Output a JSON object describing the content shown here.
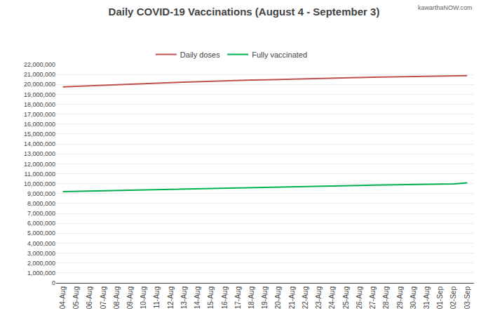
{
  "chart_data": {
    "type": "line",
    "title": "Daily COVID-19 Vaccinations (August 4 - September 3)",
    "annotations": [
      "kawarthaNOW.com"
    ],
    "categories": [
      "04-Aug",
      "05-Aug",
      "06-Aug",
      "07-Aug",
      "08-Aug",
      "09-Aug",
      "10-Aug",
      "11-Aug",
      "12-Aug",
      "13-Aug",
      "14-Aug",
      "15-Aug",
      "16-Aug",
      "17-Aug",
      "18-Aug",
      "19-Aug",
      "20-Aug",
      "21-Aug",
      "22-Aug",
      "23-Aug",
      "24-Aug",
      "25-Aug",
      "26-Aug",
      "27-Aug",
      "28-Aug",
      "29-Aug",
      "30-Aug",
      "31-Aug",
      "01-Sep",
      "02-Sep",
      "03-Sep"
    ],
    "series": [
      {
        "name": "Daily doses",
        "color": "#c0504d",
        "values": [
          19750000,
          19810000,
          19870000,
          19920000,
          19970000,
          20020000,
          20070000,
          20130000,
          20180000,
          20230000,
          20280000,
          20330000,
          20370000,
          20400000,
          20440000,
          20470000,
          20510000,
          20550000,
          20580000,
          20610000,
          20640000,
          20670000,
          20700000,
          20720000,
          20740000,
          20760000,
          20790000,
          20810000,
          20830000,
          20850000,
          20880000
        ]
      },
      {
        "name": "Fully vaccinated",
        "color": "#00b050",
        "values": [
          9200000,
          9230000,
          9255000,
          9275000,
          9305000,
          9335000,
          9365000,
          9395000,
          9425000,
          9455000,
          9480000,
          9510000,
          9530000,
          9555000,
          9580000,
          9605000,
          9640000,
          9670000,
          9700000,
          9730000,
          9760000,
          9790000,
          9820000,
          9845000,
          9865000,
          9890000,
          9910000,
          9930000,
          9950000,
          9975000,
          10080000
        ]
      }
    ],
    "ylim": [
      0,
      22000000
    ],
    "yticks": [
      0,
      {
        "value": 1000000,
        "label": "1,000,000"
      },
      {
        "value": 2000000,
        "label": "2,000,000"
      },
      {
        "value": 3000000,
        "label": "3,000,000"
      },
      {
        "value": 4000000,
        "label": "4,000,000"
      },
      {
        "value": 5000000,
        "label": "5,000,000"
      },
      {
        "value": 6000000,
        "label": "6,000,000"
      },
      {
        "value": 7000000,
        "label": "7,000,000"
      },
      {
        "value": 8000000,
        "label": "8,000,000"
      },
      {
        "value": 9000000,
        "label": "9,000,000"
      },
      {
        "value": 10000000,
        "label": "10,000,000"
      },
      {
        "value": 11000000,
        "label": "11,000,000"
      },
      {
        "value": 12000000,
        "label": "12,000,000"
      },
      {
        "value": 13000000,
        "label": "13,000,000"
      },
      {
        "value": 14000000,
        "label": "14,000,000"
      },
      {
        "value": 15000000,
        "label": "15,000,000"
      },
      {
        "value": 16000000,
        "label": "16,000,000"
      },
      {
        "value": 17000000,
        "label": "17,000,000"
      },
      {
        "value": 18000000,
        "label": "18,000,000"
      },
      {
        "value": 19000000,
        "label": "19,000,000"
      },
      {
        "value": 20000000,
        "label": "20,000,000"
      },
      {
        "value": 21000000,
        "label": "21,000,000"
      },
      {
        "value": 22000000,
        "label": "22,000,000"
      }
    ],
    "grid": true,
    "legend": "top"
  }
}
